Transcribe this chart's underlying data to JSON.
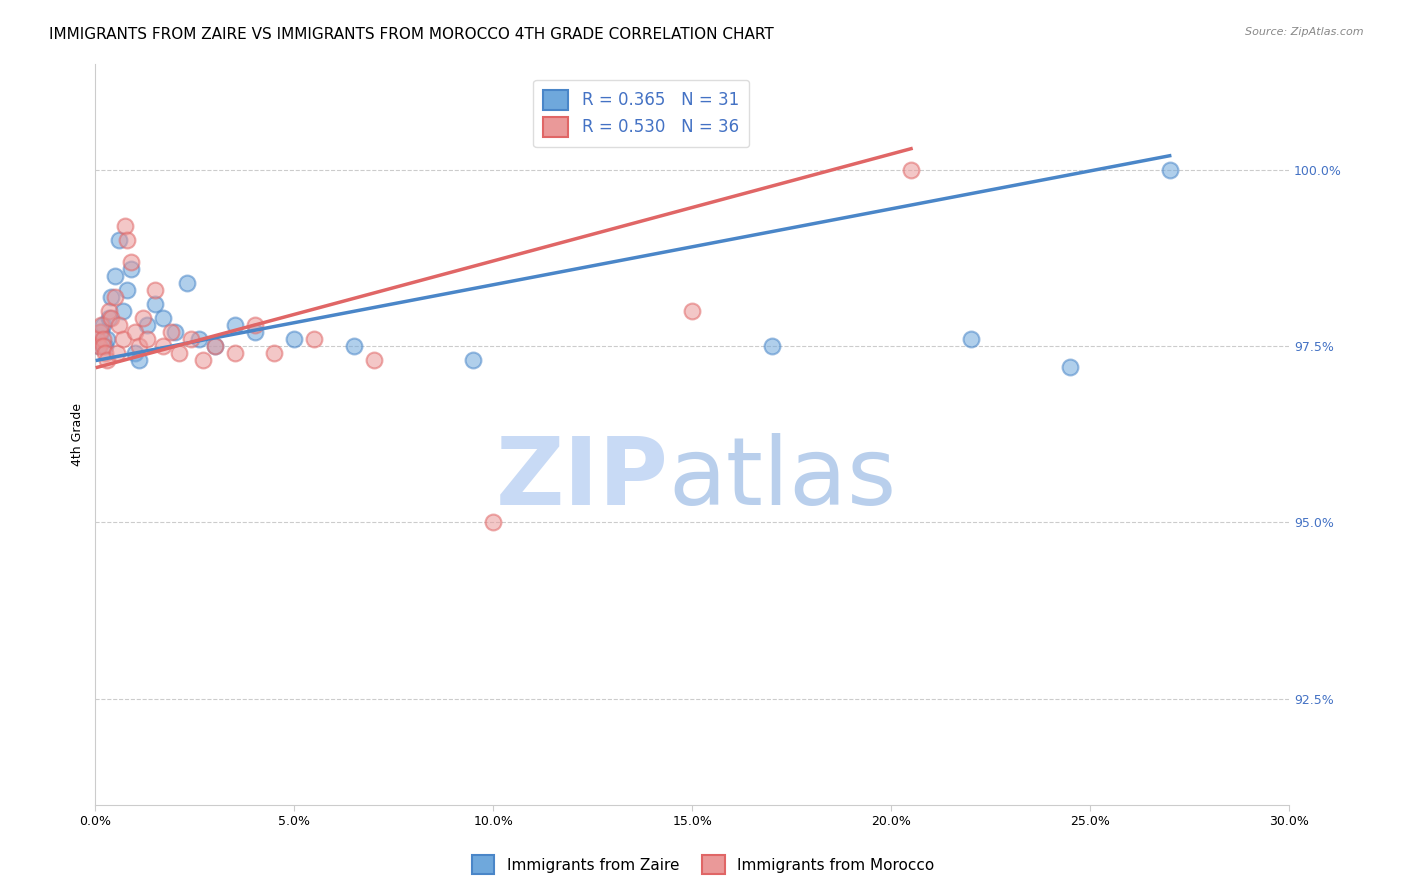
{
  "title": "IMMIGRANTS FROM ZAIRE VS IMMIGRANTS FROM MOROCCO 4TH GRADE CORRELATION CHART",
  "source": "Source: ZipAtlas.com",
  "ylabel": "4th Grade",
  "x_tick_labels": [
    "0.0%",
    "5.0%",
    "10.0%",
    "15.0%",
    "20.0%",
    "25.0%",
    "30.0%"
  ],
  "x_tick_values": [
    0.0,
    5.0,
    10.0,
    15.0,
    20.0,
    25.0,
    30.0
  ],
  "y_tick_labels": [
    "92.5%",
    "95.0%",
    "97.5%",
    "100.0%"
  ],
  "y_tick_values": [
    92.5,
    95.0,
    97.5,
    100.0
  ],
  "xlim": [
    0.0,
    30.0
  ],
  "ylim": [
    91.0,
    101.5
  ],
  "legend_zaire": "Immigrants from Zaire",
  "legend_morocco": "Immigrants from Morocco",
  "r_zaire": 0.365,
  "n_zaire": 31,
  "r_morocco": 0.53,
  "n_morocco": 36,
  "color_zaire": "#6fa8dc",
  "color_morocco": "#ea9999",
  "color_zaire_line": "#4a86c8",
  "color_morocco_line": "#e06666",
  "background_color": "#ffffff",
  "watermark_color_zip": "#c8daf5",
  "watermark_color_atlas": "#a8c4e8",
  "title_fontsize": 11,
  "axis_label_fontsize": 9,
  "tick_fontsize": 9,
  "zaire_x": [
    0.05,
    0.1,
    0.15,
    0.2,
    0.25,
    0.3,
    0.35,
    0.4,
    0.5,
    0.6,
    0.7,
    0.8,
    0.9,
    1.0,
    1.1,
    1.3,
    1.5,
    1.7,
    2.0,
    2.3,
    2.6,
    3.0,
    3.5,
    4.0,
    5.0,
    6.5,
    9.5,
    17.0,
    22.0,
    24.5,
    27.0
  ],
  "zaire_y": [
    97.6,
    97.5,
    97.7,
    97.8,
    97.5,
    97.6,
    97.9,
    98.2,
    98.5,
    99.0,
    98.0,
    98.3,
    98.6,
    97.4,
    97.3,
    97.8,
    98.1,
    97.9,
    97.7,
    98.4,
    97.6,
    97.5,
    97.8,
    97.7,
    97.6,
    97.5,
    97.3,
    97.5,
    97.6,
    97.2,
    100.0
  ],
  "morocco_x": [
    0.05,
    0.1,
    0.12,
    0.15,
    0.18,
    0.2,
    0.25,
    0.3,
    0.35,
    0.4,
    0.5,
    0.55,
    0.6,
    0.7,
    0.75,
    0.8,
    0.9,
    1.0,
    1.1,
    1.2,
    1.3,
    1.5,
    1.7,
    1.9,
    2.1,
    2.4,
    2.7,
    3.0,
    3.5,
    4.0,
    4.5,
    5.5,
    7.0,
    10.0,
    15.0,
    20.5
  ],
  "morocco_y": [
    97.6,
    97.5,
    97.7,
    97.8,
    97.6,
    97.5,
    97.4,
    97.3,
    98.0,
    97.9,
    98.2,
    97.4,
    97.8,
    97.6,
    99.2,
    99.0,
    98.7,
    97.7,
    97.5,
    97.9,
    97.6,
    98.3,
    97.5,
    97.7,
    97.4,
    97.6,
    97.3,
    97.5,
    97.4,
    97.8,
    97.4,
    97.6,
    97.3,
    95.0,
    98.0,
    100.0
  ],
  "zaire_line_x": [
    0.05,
    27.0
  ],
  "zaire_line_y": [
    97.3,
    100.2
  ],
  "morocco_line_x": [
    0.05,
    20.5
  ],
  "morocco_line_y": [
    97.2,
    100.3
  ]
}
